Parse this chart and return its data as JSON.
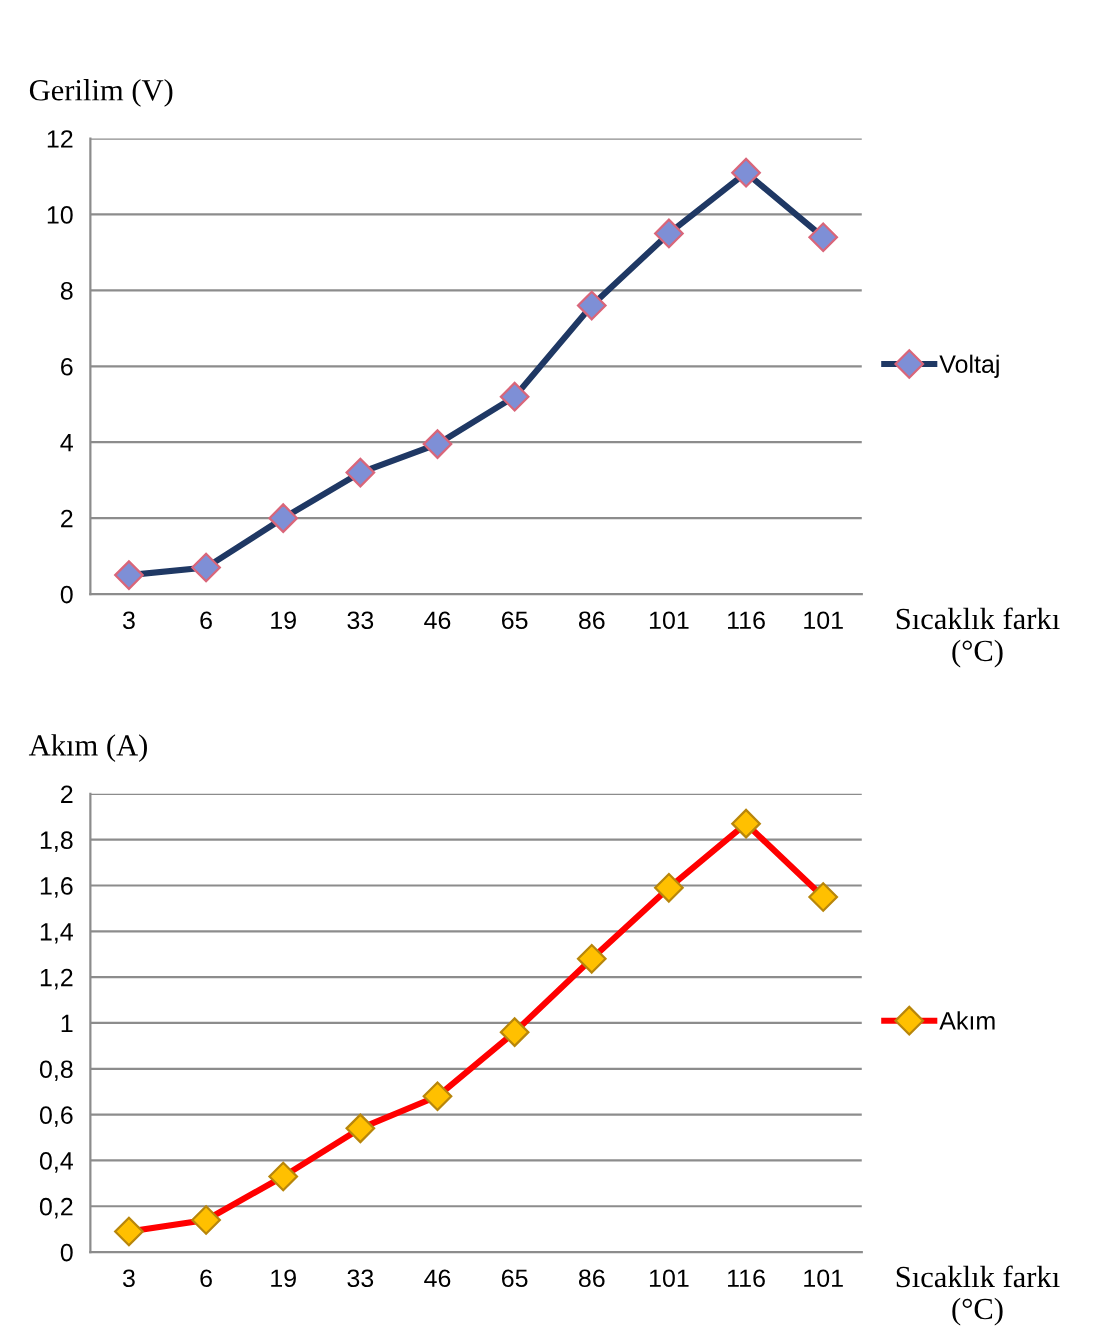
{
  "chart_data": [
    {
      "type": "line",
      "title": "Gerilim (V)",
      "xlabel": "Sıcaklık farkı\n(°C)",
      "categories": [
        "3",
        "6",
        "19",
        "33",
        "46",
        "65",
        "86",
        "101",
        "116",
        "101"
      ],
      "series": [
        {
          "name": "Voltaj",
          "color": "#1f3864",
          "values": [
            0.5,
            0.7,
            2.0,
            3.2,
            3.95,
            5.2,
            7.6,
            9.5,
            11.1,
            9.4
          ]
        }
      ],
      "ylim": [
        0,
        12
      ],
      "yticks": [
        0,
        2,
        4,
        6,
        8,
        10,
        12
      ],
      "grid": "y",
      "legend": "right",
      "marker": "diamond",
      "line_style": "solid"
    },
    {
      "type": "line",
      "title": "Akım (A)",
      "xlabel": "Sıcaklık farkı\n(°C)",
      "categories": [
        "3",
        "6",
        "19",
        "33",
        "46",
        "65",
        "86",
        "101",
        "116",
        "101"
      ],
      "series": [
        {
          "name": "Akım",
          "color": "#ff0000",
          "values": [
            0.09,
            0.14,
            0.33,
            0.54,
            0.68,
            0.96,
            1.28,
            1.59,
            1.87,
            1.55
          ]
        }
      ],
      "ylim": [
        0,
        2
      ],
      "yticks": [
        0,
        {
          "value": 0.2,
          "label": "0,2"
        },
        {
          "value": 0.4,
          "label": "0,4"
        },
        {
          "value": 0.6,
          "label": "0,6"
        },
        {
          "value": 0.8,
          "label": "0,8"
        },
        1,
        {
          "value": 1.2,
          "label": "1,2"
        },
        {
          "value": 1.4,
          "label": "1,4"
        },
        {
          "value": 1.6,
          "label": "1,6"
        },
        {
          "value": 1.8,
          "label": "1,8"
        },
        2
      ],
      "grid": "y",
      "legend": "right",
      "marker": "diamond",
      "line_style": "solid"
    }
  ]
}
